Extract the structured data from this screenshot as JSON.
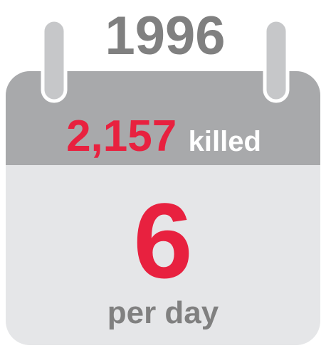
{
  "year": "1996",
  "headline": {
    "number": "2,157",
    "label": "killed"
  },
  "rate": {
    "number": "6",
    "label": "per day"
  }
}
